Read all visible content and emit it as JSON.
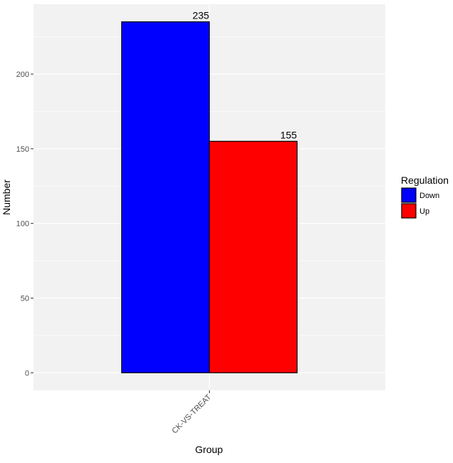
{
  "chart_data": {
    "type": "bar",
    "categories": [
      "CK-VS-TREAT"
    ],
    "series": [
      {
        "name": "Down",
        "values": [
          235
        ],
        "color": "#0000FF"
      },
      {
        "name": "Up",
        "values": [
          155
        ],
        "color": "#FF0000"
      }
    ],
    "xlabel": "Group",
    "ylabel": "Number",
    "ylim": [
      -11.75,
      246.75
    ],
    "yticks": [
      0,
      50,
      100,
      150,
      200
    ],
    "data_labels": [
      "235",
      "155"
    ],
    "legend": {
      "title": "Regulation",
      "position": "right",
      "entries": [
        "Down",
        "Up"
      ]
    },
    "grid": true,
    "panel_background": "#F2F2F2",
    "grid_color": "#FFFFFF"
  }
}
